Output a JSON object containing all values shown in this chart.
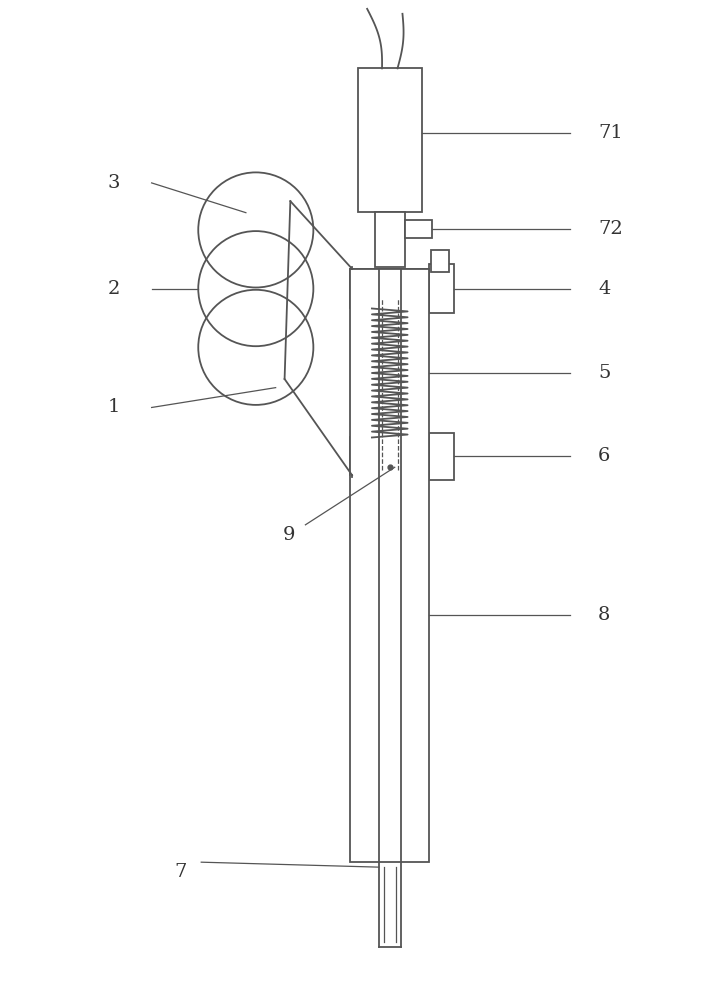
{
  "bg_color": "#ffffff",
  "line_color": "#555555",
  "label_color": "#333333",
  "figsize": [
    7.19,
    10.0
  ],
  "dpi": 100
}
